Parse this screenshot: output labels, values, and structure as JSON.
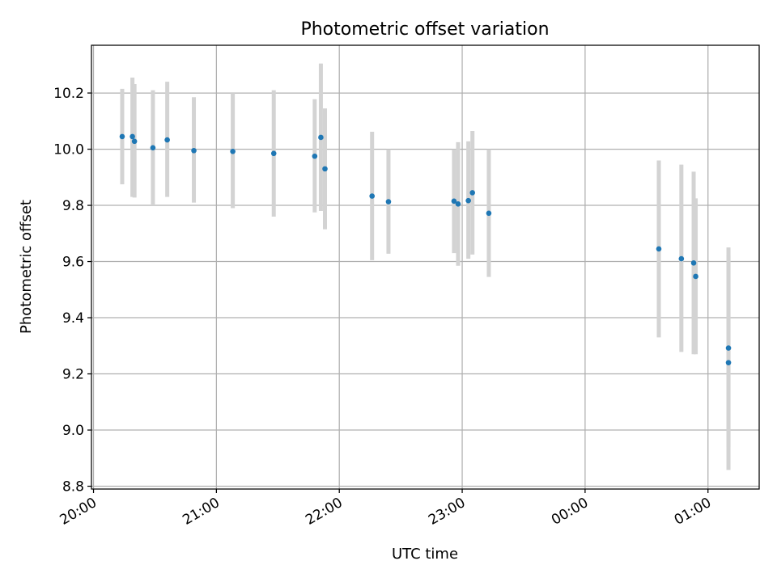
{
  "chart_data": {
    "type": "scatter",
    "title": "Photometric offset variation",
    "xlabel": "UTC time",
    "ylabel": "Photometric offset",
    "x_unit": "time of day (UTC), next-day times after midnight",
    "xlim": [
      "19:59",
      "01:25"
    ],
    "ylim": [
      8.79,
      10.37
    ],
    "x_ticks": [
      "20:00",
      "21:00",
      "22:00",
      "23:00",
      "00:00",
      "01:00"
    ],
    "y_ticks": [
      "8.8",
      "9.0",
      "9.2",
      "9.4",
      "9.6",
      "9.8",
      "10.0",
      "10.2"
    ],
    "grid": true,
    "colors": {
      "point": "#1f77b4",
      "errorbar": "#d3d3d3",
      "grid": "#b0b0b0"
    },
    "series": [
      {
        "points": [
          {
            "x": "20:14",
            "y": 10.045,
            "ylow": 9.875,
            "yhigh": 10.215
          },
          {
            "x": "20:19",
            "y": 10.045,
            "ylow": 9.83,
            "yhigh": 10.255
          },
          {
            "x": "20:20",
            "y": 10.028,
            "ylow": 9.828,
            "yhigh": 10.232
          },
          {
            "x": "20:29",
            "y": 10.005,
            "ylow": 9.8,
            "yhigh": 10.21
          },
          {
            "x": "20:36",
            "y": 10.033,
            "ylow": 9.83,
            "yhigh": 10.24
          },
          {
            "x": "20:49",
            "y": 9.995,
            "ylow": 9.81,
            "yhigh": 10.185
          },
          {
            "x": "21:08",
            "y": 9.992,
            "ylow": 9.79,
            "yhigh": 10.2
          },
          {
            "x": "21:28",
            "y": 9.985,
            "ylow": 9.76,
            "yhigh": 10.21
          },
          {
            "x": "21:48",
            "y": 9.975,
            "ylow": 9.775,
            "yhigh": 10.178
          },
          {
            "x": "21:51",
            "y": 10.042,
            "ylow": 9.78,
            "yhigh": 10.305
          },
          {
            "x": "21:53",
            "y": 9.93,
            "ylow": 9.715,
            "yhigh": 10.145
          },
          {
            "x": "22:16",
            "y": 9.833,
            "ylow": 9.605,
            "yhigh": 10.062
          },
          {
            "x": "22:24",
            "y": 9.813,
            "ylow": 9.628,
            "yhigh": 10.0
          },
          {
            "x": "22:56",
            "y": 9.815,
            "ylow": 9.63,
            "yhigh": 10.0
          },
          {
            "x": "22:58",
            "y": 9.805,
            "ylow": 9.585,
            "yhigh": 10.025
          },
          {
            "x": "23:03",
            "y": 9.817,
            "ylow": 9.61,
            "yhigh": 10.028
          },
          {
            "x": "23:05",
            "y": 9.845,
            "ylow": 9.625,
            "yhigh": 10.065
          },
          {
            "x": "23:13",
            "y": 9.772,
            "ylow": 9.545,
            "yhigh": 10.0
          },
          {
            "x": "00:36",
            "y": 9.645,
            "ylow": 9.33,
            "yhigh": 9.96
          },
          {
            "x": "00:47",
            "y": 9.61,
            "ylow": 9.278,
            "yhigh": 9.945
          },
          {
            "x": "00:53",
            "y": 9.595,
            "ylow": 9.27,
            "yhigh": 9.92
          },
          {
            "x": "00:54",
            "y": 9.547,
            "ylow": 9.27,
            "yhigh": 9.825
          },
          {
            "x": "01:10",
            "y": 9.292,
            "ylow": 8.94,
            "yhigh": 9.65
          },
          {
            "x": "01:10",
            "y": 9.24,
            "ylow": 8.858,
            "yhigh": 9.622
          }
        ]
      }
    ]
  }
}
